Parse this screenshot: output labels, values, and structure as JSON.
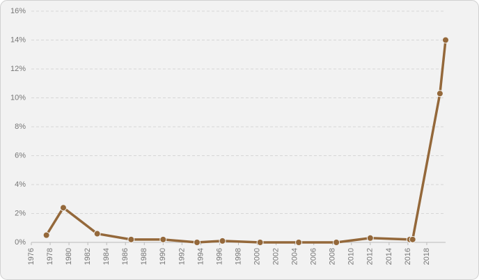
{
  "chart_data": {
    "type": "line",
    "x": [
      1977.6,
      1979.4,
      1983,
      1986.6,
      1990,
      1993.6,
      1996.3,
      2000.3,
      2004.4,
      2008.4,
      2012,
      2016.2,
      2016.5,
      2019.4,
      2020
    ],
    "values": [
      0.5,
      2.4,
      0.6,
      0.2,
      0.2,
      0.0,
      0.1,
      0.0,
      0.0,
      0.0,
      0.3,
      0.2,
      0.2,
      10.3,
      14.0
    ],
    "color": "#94683a",
    "xlim": [
      1976,
      2020
    ],
    "xticks": [
      1976,
      1978,
      1980,
      1982,
      1984,
      1986,
      1988,
      1990,
      1992,
      1994,
      1996,
      1998,
      2000,
      2002,
      2004,
      2006,
      2008,
      2010,
      2012,
      2014,
      2016,
      2018
    ],
    "ylim": [
      0,
      16
    ],
    "yticks": [
      {
        "value": 0,
        "label": "0%"
      },
      {
        "value": 2,
        "label": "2%"
      },
      {
        "value": 4,
        "label": "4%"
      },
      {
        "value": 6,
        "label": "6%"
      },
      {
        "value": 8,
        "label": "8%"
      },
      {
        "value": 10,
        "label": "10%"
      },
      {
        "value": 12,
        "label": "12%"
      },
      {
        "value": 14,
        "label": "14%"
      },
      {
        "value": 16,
        "label": "16%"
      }
    ],
    "grid": true
  }
}
